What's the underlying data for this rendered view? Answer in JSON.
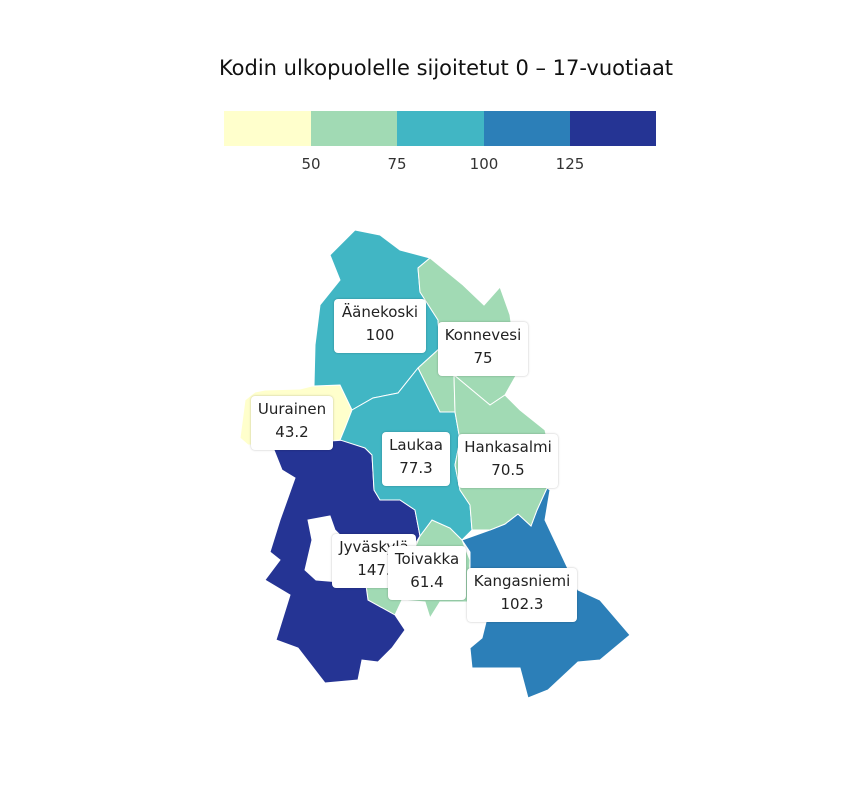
{
  "title": "Kodin ulkopuolelle sijoitetut 0 – 17-vuotiaat",
  "legend": {
    "bins": [
      {
        "color": "#ffffcc"
      },
      {
        "color": "#a1dab4"
      },
      {
        "color": "#41b6c4"
      },
      {
        "color": "#2c7fb8"
      },
      {
        "color": "#253494"
      }
    ],
    "ticks": [
      "50",
      "75",
      "100",
      "125"
    ]
  },
  "regions": [
    {
      "name": "Äänekoski",
      "value": "100",
      "color": "#41b6c4"
    },
    {
      "name": "Konnevesi",
      "value": "75",
      "color": "#a1dab4"
    },
    {
      "name": "Uurainen",
      "value": "43.2",
      "color": "#ffffcc"
    },
    {
      "name": "Laukaa",
      "value": "77.3",
      "color": "#41b6c4"
    },
    {
      "name": "Hankasalmi",
      "value": "70.5",
      "color": "#a1dab4"
    },
    {
      "name": "Jyväskylä",
      "value": "147.",
      "color": "#253494"
    },
    {
      "name": "Toivakka",
      "value": "61.4",
      "color": "#a1dab4"
    },
    {
      "name": "Kangasniemi",
      "value": "102.3",
      "color": "#2c7fb8"
    }
  ]
}
